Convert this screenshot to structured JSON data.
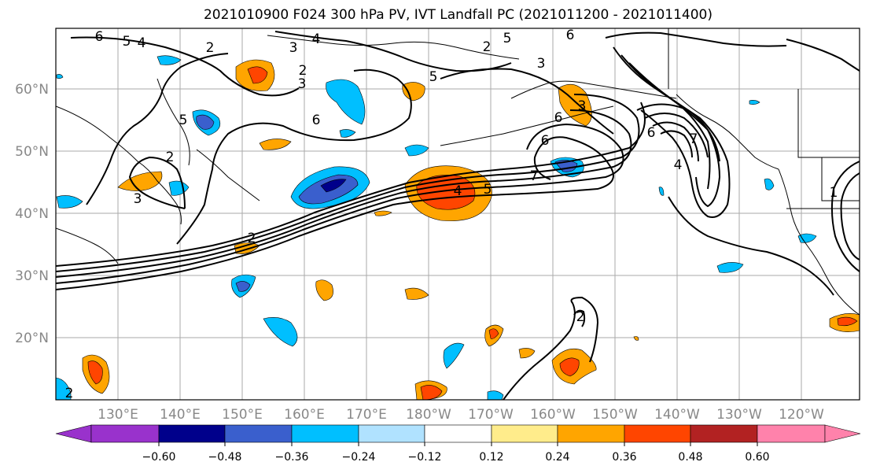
{
  "title": "2021010900 F024 300 hPa PV, IVT Landfall PC (2021011200 - 2021011400)",
  "map": {
    "lat_labels": [
      "60°N",
      "50°N",
      "40°N",
      "30°N",
      "20°N"
    ],
    "lon_labels": [
      "130°E",
      "140°E",
      "150°E",
      "160°E",
      "170°E",
      "180°W",
      "170°W",
      "160°W",
      "150°W",
      "140°W",
      "130°W",
      "120°W"
    ],
    "contour_labels": [
      "6",
      "5",
      "4",
      "2",
      "3",
      "4",
      "5",
      "6",
      "2",
      "3",
      "5",
      "2",
      "6",
      "2",
      "3",
      "5",
      "3",
      "6",
      "6",
      "7",
      "4",
      "6",
      "7",
      "4",
      "5",
      "3",
      "2",
      "2",
      "2",
      "1"
    ]
  },
  "colorbar": {
    "tick_labels": [
      "−0.60",
      "−0.48",
      "−0.36",
      "−0.24",
      "−0.12",
      "0.12",
      "0.24",
      "0.36",
      "0.48",
      "0.60"
    ],
    "colors": [
      "#9932cc",
      "#00008b",
      "#3a5fcd",
      "#00bfff",
      "#b0e2ff",
      "#ffffff",
      "#ffec8b",
      "#ffa500",
      "#ff4500",
      "#b22222",
      "#ff82ab"
    ]
  }
}
